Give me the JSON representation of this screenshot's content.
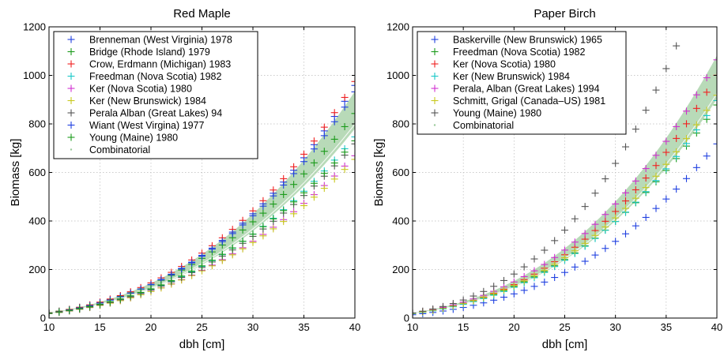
{
  "chart_data": [
    {
      "type": "scatter",
      "title": "Red Maple",
      "xlabel": "dbh [cm]",
      "ylabel": "Biomass [kg]",
      "xlim": [
        10,
        40
      ],
      "ylim": [
        0,
        1200
      ],
      "xticks": [
        "10",
        "15",
        "20",
        "25",
        "30",
        "35",
        "40"
      ],
      "yticks": [
        "0",
        "200",
        "400",
        "600",
        "800",
        "1000",
        "1200"
      ],
      "grid": true,
      "legend_position": "top-left",
      "x": [
        10,
        11,
        12,
        13,
        14,
        15,
        16,
        17,
        18,
        19,
        20,
        21,
        22,
        23,
        24,
        25,
        26,
        27,
        28,
        29,
        30,
        31,
        32,
        33,
        34,
        35,
        36,
        37,
        38,
        39,
        40
      ],
      "series": [
        {
          "name": "Brenneman (West Virginia) 1978",
          "color": "#1f3fe0",
          "marker": "+",
          "a": 0.0325,
          "b": 2.79
        },
        {
          "name": "Bridge (Rhode Island) 1979",
          "color": "#1a9a1a",
          "marker": "+",
          "a": 0.0535,
          "b": 2.62
        },
        {
          "name": "Crow, Erdmann (Michigan) 1983",
          "color": "#f02020",
          "marker": "+",
          "a": 0.0383,
          "b": 2.75
        },
        {
          "name": "Freedman (Nova Scotia) 1982",
          "color": "#19c8c8",
          "marker": "+",
          "a": 0.0394,
          "b": 2.67
        },
        {
          "name": "Ker (Nova Scotia) 1980",
          "color": "#d030d0",
          "marker": "+",
          "a": 0.0457,
          "b": 2.6
        },
        {
          "name": "Ker (New Brunswick) 1984",
          "color": "#c8c81e",
          "marker": "+",
          "a": 0.0481,
          "b": 2.58
        },
        {
          "name": "Perala Alban (Great Lakes) 94",
          "color": "#555555",
          "marker": "+",
          "a": 0.0439,
          "b": 2.63
        },
        {
          "name": "Wiant (West Virgina) 1977",
          "color": "#1f3fe0",
          "marker": "+",
          "a": 0.0353,
          "b": 2.76
        },
        {
          "name": "Young (Maine) 1980",
          "color": "#1a9a1a",
          "marker": "+",
          "a": 0.0499,
          "b": 2.6
        },
        {
          "name": "Combinatorial",
          "color": "#9aca9a",
          "marker": "band",
          "a": 0.0405,
          "b": 2.7,
          "band": 0.09
        }
      ]
    },
    {
      "type": "scatter",
      "title": "Paper Birch",
      "xlabel": "dbh [cm]",
      "ylabel": "Biomass [kg]",
      "xlim": [
        10,
        40
      ],
      "ylim": [
        0,
        1200
      ],
      "xticks": [
        "10",
        "15",
        "20",
        "25",
        "30",
        "35",
        "40"
      ],
      "yticks": [
        "0",
        "200",
        "400",
        "600",
        "800",
        "1000",
        "1200"
      ],
      "grid": true,
      "legend_position": "top-left",
      "x": [
        10,
        11,
        12,
        13,
        14,
        15,
        16,
        17,
        18,
        19,
        20,
        21,
        22,
        23,
        24,
        25,
        26,
        27,
        28,
        29,
        30,
        31,
        32,
        33,
        34,
        35,
        36,
        37,
        38,
        39,
        40
      ],
      "series": [
        {
          "name": "Baskerville (New Brunswick) 1965",
          "color": "#1f3fe0",
          "marker": "+",
          "a": 0.0195,
          "b": 2.85
        },
        {
          "name": "Freedman (Nova Scotia) 1982",
          "color": "#1a9a1a",
          "marker": "+",
          "a": 0.0345,
          "b": 2.75
        },
        {
          "name": "Ker (Nova Scotia) 1980",
          "color": "#f02020",
          "marker": "+",
          "a": 0.0262,
          "b": 2.86
        },
        {
          "name": "Ker (New Brunswick) 1984",
          "color": "#19c8c8",
          "marker": "+",
          "a": 0.0272,
          "b": 2.82
        },
        {
          "name": "Perala, Alban (Great Lakes) 1994",
          "color": "#d030d0",
          "marker": "+",
          "a": 0.03,
          "b": 2.84
        },
        {
          "name": "Schmitt, Grigal (Canada–US) 1981",
          "color": "#c8c81e",
          "marker": "+",
          "a": 0.0323,
          "b": 2.78
        },
        {
          "name": "Young (Maine) 1980",
          "color": "#555555",
          "marker": "+",
          "a": 0.0168,
          "b": 3.1
        },
        {
          "name": "Combinatorial",
          "color": "#9aca9a",
          "marker": "band",
          "a": 0.0301,
          "b": 2.82,
          "band": 0.09
        }
      ]
    }
  ]
}
